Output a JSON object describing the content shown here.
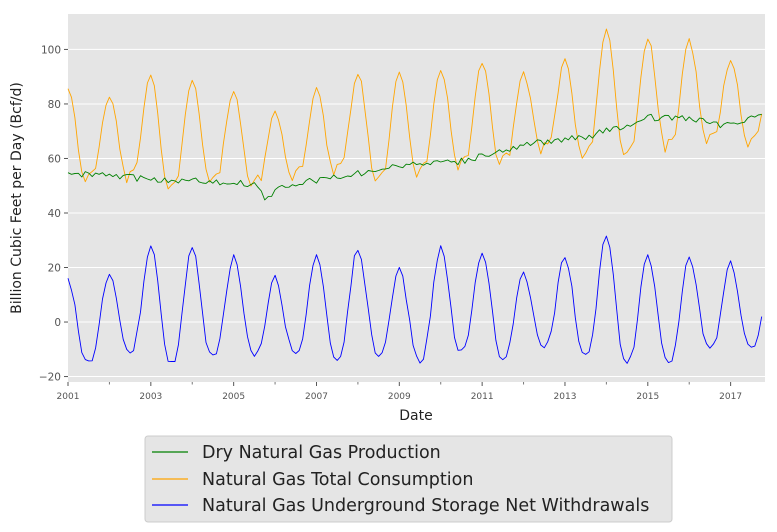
{
  "chart_data": {
    "type": "line",
    "title": "",
    "xlabel": "Date",
    "ylabel": "Billion Cubic Feet per Day (Bcf/d)",
    "x_start": "2001-01",
    "x_end": "2017-11",
    "frequency": "monthly",
    "xlim": [
      2001.0,
      2017.83
    ],
    "ylim": [
      -22,
      113
    ],
    "yticks": [
      -20,
      0,
      20,
      40,
      60,
      80,
      100
    ],
    "xticks_major": [
      "2001",
      "2003",
      "2005",
      "2007",
      "2009",
      "2011",
      "2013",
      "2015",
      "2017"
    ],
    "xticks_minor": [
      2002,
      2004,
      2006,
      2008,
      2010,
      2012,
      2014,
      2016
    ],
    "grid": true,
    "legend_position": "bottom-center",
    "series": [
      {
        "name": "Dry Natural Gas Production",
        "color": "#008000",
        "anchors": [
          [
            2001.0,
            54
          ],
          [
            2001.5,
            54
          ],
          [
            2002.0,
            54
          ],
          [
            2002.5,
            53
          ],
          [
            2003.0,
            52
          ],
          [
            2003.5,
            52
          ],
          [
            2004.0,
            52
          ],
          [
            2004.5,
            51.5
          ],
          [
            2005.0,
            51.5
          ],
          [
            2005.5,
            50
          ],
          [
            2005.75,
            45.5
          ],
          [
            2006.0,
            48
          ],
          [
            2006.5,
            51
          ],
          [
            2007.0,
            52
          ],
          [
            2007.5,
            53
          ],
          [
            2008.0,
            54.5
          ],
          [
            2008.5,
            56
          ],
          [
            2009.0,
            57.5
          ],
          [
            2009.5,
            58
          ],
          [
            2010.0,
            58
          ],
          [
            2010.5,
            59
          ],
          [
            2011.0,
            61
          ],
          [
            2011.5,
            63
          ],
          [
            2012.0,
            65
          ],
          [
            2012.5,
            66
          ],
          [
            2013.0,
            67
          ],
          [
            2013.5,
            68
          ],
          [
            2014.0,
            70
          ],
          [
            2014.5,
            72
          ],
          [
            2015.0,
            75
          ],
          [
            2015.5,
            75
          ],
          [
            2016.0,
            74.5
          ],
          [
            2016.5,
            73
          ],
          [
            2017.0,
            72
          ],
          [
            2017.5,
            75
          ],
          [
            2017.83,
            77
          ]
        ],
        "noise": 1.2
      },
      {
        "name": "Natural Gas Total Consumption",
        "color": "#FFA500",
        "peaks": [
          [
            2001.0,
            85
          ],
          [
            2002.0,
            83
          ],
          [
            2003.0,
            90
          ],
          [
            2004.0,
            89
          ],
          [
            2005.0,
            85
          ],
          [
            2006.0,
            77
          ],
          [
            2007.0,
            85
          ],
          [
            2008.0,
            91
          ],
          [
            2009.0,
            91
          ],
          [
            2010.0,
            93
          ],
          [
            2011.0,
            95
          ],
          [
            2012.0,
            91
          ],
          [
            2013.0,
            96
          ],
          [
            2014.0,
            107
          ],
          [
            2015.0,
            104
          ],
          [
            2016.0,
            103
          ],
          [
            2017.0,
            96
          ]
        ],
        "troughs": [
          [
            2001.67,
            50
          ],
          [
            2002.67,
            51
          ],
          [
            2003.67,
            47
          ],
          [
            2004.67,
            50
          ],
          [
            2005.67,
            48
          ],
          [
            2006.67,
            51
          ],
          [
            2007.67,
            53
          ],
          [
            2008.67,
            50
          ],
          [
            2009.67,
            52
          ],
          [
            2010.67,
            55
          ],
          [
            2011.67,
            56
          ],
          [
            2012.67,
            61
          ],
          [
            2013.67,
            58
          ],
          [
            2014.67,
            59
          ],
          [
            2015.67,
            62
          ],
          [
            2016.67,
            64
          ],
          [
            2017.67,
            64
          ]
        ],
        "summer_peak": 4
      },
      {
        "name": "Natural Gas Underground Storage Net Withdrawals",
        "color": "#0000FF",
        "peaks": [
          [
            2001.0,
            15
          ],
          [
            2002.0,
            18
          ],
          [
            2003.0,
            28
          ],
          [
            2004.0,
            27
          ],
          [
            2005.0,
            24
          ],
          [
            2006.0,
            16
          ],
          [
            2007.0,
            24
          ],
          [
            2008.0,
            27
          ],
          [
            2009.0,
            20
          ],
          [
            2010.0,
            27
          ],
          [
            2011.0,
            26
          ],
          [
            2012.0,
            18
          ],
          [
            2013.0,
            24
          ],
          [
            2014.0,
            32
          ],
          [
            2015.0,
            25
          ],
          [
            2016.0,
            24
          ],
          [
            2017.0,
            22
          ]
        ],
        "troughs": [
          [
            2001.5,
            -15
          ],
          [
            2002.5,
            -11
          ],
          [
            2003.5,
            -15
          ],
          [
            2004.5,
            -13
          ],
          [
            2005.5,
            -12
          ],
          [
            2006.5,
            -12
          ],
          [
            2007.5,
            -14
          ],
          [
            2008.5,
            -12
          ],
          [
            2009.5,
            -14
          ],
          [
            2010.5,
            -11
          ],
          [
            2011.5,
            -13
          ],
          [
            2012.5,
            -9
          ],
          [
            2013.5,
            -13
          ],
          [
            2014.5,
            -15
          ],
          [
            2015.5,
            -15
          ],
          [
            2016.5,
            -10
          ],
          [
            2017.5,
            -10
          ]
        ],
        "end_value": 2
      }
    ]
  }
}
